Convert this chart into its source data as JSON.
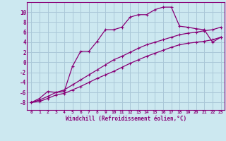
{
  "xlabel": "Windchill (Refroidissement éolien,°C)",
  "bg_color": "#cce8f0",
  "grid_color": "#aac8d8",
  "line_color": "#880077",
  "xlim": [
    -0.5,
    23.5
  ],
  "ylim": [
    -9.5,
    12.0
  ],
  "xticks": [
    0,
    1,
    2,
    3,
    4,
    5,
    6,
    7,
    8,
    9,
    10,
    11,
    12,
    13,
    14,
    15,
    16,
    17,
    18,
    19,
    20,
    21,
    22,
    23
  ],
  "yticks": [
    -8,
    -6,
    -4,
    -2,
    0,
    2,
    4,
    6,
    8,
    10
  ],
  "curve1_x": [
    0,
    1,
    2,
    3,
    4,
    5,
    6,
    7,
    8,
    9,
    10,
    11,
    12,
    13,
    14,
    15,
    16,
    17,
    18,
    19,
    20,
    21,
    22,
    23
  ],
  "curve1_y": [
    -8.0,
    -7.2,
    -5.8,
    -6.0,
    -5.8,
    -0.8,
    2.2,
    2.2,
    4.2,
    6.5,
    6.5,
    7.0,
    9.0,
    9.5,
    9.5,
    10.5,
    11.0,
    11.0,
    7.2,
    7.0,
    6.7,
    6.5,
    4.0,
    5.0
  ],
  "curve2_x": [
    0,
    1,
    2,
    3,
    4,
    5,
    6,
    7,
    8,
    9,
    10,
    11,
    12,
    13,
    14,
    15,
    16,
    17,
    18,
    19,
    20,
    21,
    22,
    23
  ],
  "curve2_y": [
    -8.0,
    -7.5,
    -6.8,
    -6.0,
    -5.5,
    -4.5,
    -3.5,
    -2.5,
    -1.5,
    -0.5,
    0.5,
    1.2,
    2.0,
    2.8,
    3.5,
    4.0,
    4.5,
    5.0,
    5.5,
    5.8,
    6.0,
    6.3,
    6.5,
    7.0
  ],
  "curve3_x": [
    0,
    1,
    2,
    3,
    4,
    5,
    6,
    7,
    8,
    9,
    10,
    11,
    12,
    13,
    14,
    15,
    16,
    17,
    18,
    19,
    20,
    21,
    22,
    23
  ],
  "curve3_y": [
    -8.0,
    -7.8,
    -7.2,
    -6.5,
    -6.2,
    -5.5,
    -4.8,
    -4.0,
    -3.2,
    -2.5,
    -1.8,
    -1.0,
    -0.2,
    0.5,
    1.2,
    1.8,
    2.4,
    3.0,
    3.5,
    3.8,
    4.0,
    4.2,
    4.5,
    5.0
  ]
}
